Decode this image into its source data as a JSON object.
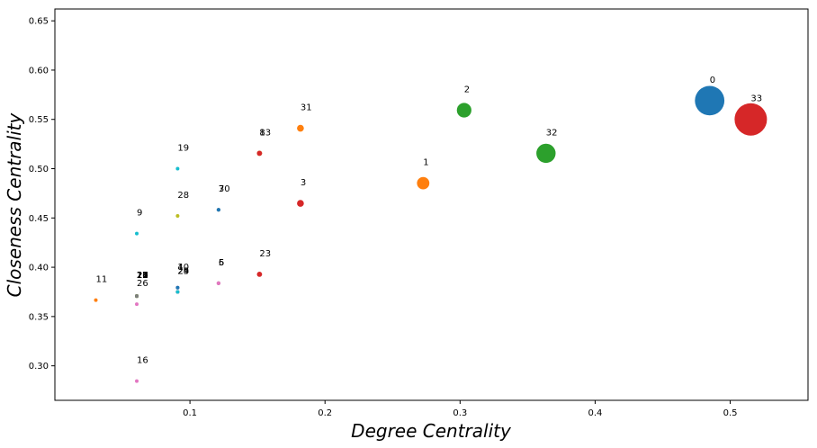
{
  "chart_data": {
    "type": "scatter",
    "title": "",
    "xlabel": "Degree Centrality",
    "ylabel": "Closeness Centrality",
    "xlim": [
      0.0,
      0.5576
    ],
    "ylim": [
      0.265,
      0.662
    ],
    "xticks": [
      0.1,
      0.2,
      0.3,
      0.4,
      0.5
    ],
    "xtick_labels": [
      "0.1",
      "0.2",
      "0.3",
      "0.4",
      "0.5"
    ],
    "yticks": [
      0.3,
      0.35,
      0.4,
      0.45,
      0.5,
      0.55,
      0.6,
      0.65
    ],
    "ytick_labels": [
      "0.30",
      "0.35",
      "0.40",
      "0.45",
      "0.50",
      "0.55",
      "0.60",
      "0.65"
    ],
    "grid": false,
    "legend": "none",
    "points": [
      {
        "label": "0",
        "x": 0.4848,
        "y": 0.569,
        "color": "#1f77b4",
        "size": 0.4848
      },
      {
        "label": "1",
        "x": 0.2727,
        "y": 0.4853,
        "color": "#ff7f0e",
        "size": 0.2727
      },
      {
        "label": "2",
        "x": 0.303,
        "y": 0.5593,
        "color": "#2ca02c",
        "size": 0.303
      },
      {
        "label": "3",
        "x": 0.1818,
        "y": 0.4648,
        "color": "#d62728",
        "size": 0.1818
      },
      {
        "label": "4",
        "x": 0.0909,
        "y": 0.3793,
        "color": "#9467bd",
        "size": 0.0909
      },
      {
        "label": "5",
        "x": 0.1212,
        "y": 0.3837,
        "color": "#8c564b",
        "size": 0.1212
      },
      {
        "label": "6",
        "x": 0.1212,
        "y": 0.3837,
        "color": "#e377c2",
        "size": 0.1212
      },
      {
        "label": "7",
        "x": 0.1212,
        "y": 0.4583,
        "color": "#7f7f7f",
        "size": 0.1212
      },
      {
        "label": "8",
        "x": 0.1515,
        "y": 0.5156,
        "color": "#bcbd22",
        "size": 0.1515
      },
      {
        "label": "9",
        "x": 0.0606,
        "y": 0.4342,
        "color": "#17becf",
        "size": 0.0606
      },
      {
        "label": "10",
        "x": 0.0909,
        "y": 0.3793,
        "color": "#1f77b4",
        "size": 0.0909
      },
      {
        "label": "11",
        "x": 0.0303,
        "y": 0.3667,
        "color": "#ff7f0e",
        "size": 0.0303
      },
      {
        "label": "12",
        "x": 0.0606,
        "y": 0.3708,
        "color": "#2ca02c",
        "size": 0.0606
      },
      {
        "label": "13",
        "x": 0.1515,
        "y": 0.5156,
        "color": "#d62728",
        "size": 0.1515
      },
      {
        "label": "14",
        "x": 0.0606,
        "y": 0.3708,
        "color": "#9467bd",
        "size": 0.0606
      },
      {
        "label": "15",
        "x": 0.0606,
        "y": 0.3708,
        "color": "#8c564b",
        "size": 0.0606
      },
      {
        "label": "16",
        "x": 0.0606,
        "y": 0.2845,
        "color": "#e377c2",
        "size": 0.0606
      },
      {
        "label": "17",
        "x": 0.0606,
        "y": 0.3708,
        "color": "#7f7f7f",
        "size": 0.0606
      },
      {
        "label": "18",
        "x": 0.0606,
        "y": 0.3708,
        "color": "#bcbd22",
        "size": 0.0606
      },
      {
        "label": "19",
        "x": 0.0909,
        "y": 0.5,
        "color": "#17becf",
        "size": 0.0909
      },
      {
        "label": "20",
        "x": 0.0606,
        "y": 0.3708,
        "color": "#1f77b4",
        "size": 0.0606
      },
      {
        "label": "21",
        "x": 0.0606,
        "y": 0.3708,
        "color": "#ff7f0e",
        "size": 0.0606
      },
      {
        "label": "22",
        "x": 0.0606,
        "y": 0.3708,
        "color": "#2ca02c",
        "size": 0.0606
      },
      {
        "label": "23",
        "x": 0.1515,
        "y": 0.3929,
        "color": "#d62728",
        "size": 0.1515
      },
      {
        "label": "24",
        "x": 0.0909,
        "y": 0.375,
        "color": "#9467bd",
        "size": 0.0909
      },
      {
        "label": "25",
        "x": 0.0909,
        "y": 0.375,
        "color": "#8c564b",
        "size": 0.0909
      },
      {
        "label": "26",
        "x": 0.0606,
        "y": 0.3626,
        "color": "#e377c2",
        "size": 0.0606
      },
      {
        "label": "27",
        "x": 0.0606,
        "y": 0.3708,
        "color": "#7f7f7f",
        "size": 0.0606
      },
      {
        "label": "28",
        "x": 0.0909,
        "y": 0.4521,
        "color": "#bcbd22",
        "size": 0.0909
      },
      {
        "label": "29",
        "x": 0.0909,
        "y": 0.375,
        "color": "#17becf",
        "size": 0.0909
      },
      {
        "label": "30",
        "x": 0.1212,
        "y": 0.4583,
        "color": "#1f77b4",
        "size": 0.1212
      },
      {
        "label": "31",
        "x": 0.1818,
        "y": 0.541,
        "color": "#ff7f0e",
        "size": 0.1818
      },
      {
        "label": "32",
        "x": 0.3636,
        "y": 0.5156,
        "color": "#2ca02c",
        "size": 0.3636
      },
      {
        "label": "33",
        "x": 0.5152,
        "y": 0.55,
        "color": "#d62728",
        "size": 0.5152
      }
    ]
  }
}
